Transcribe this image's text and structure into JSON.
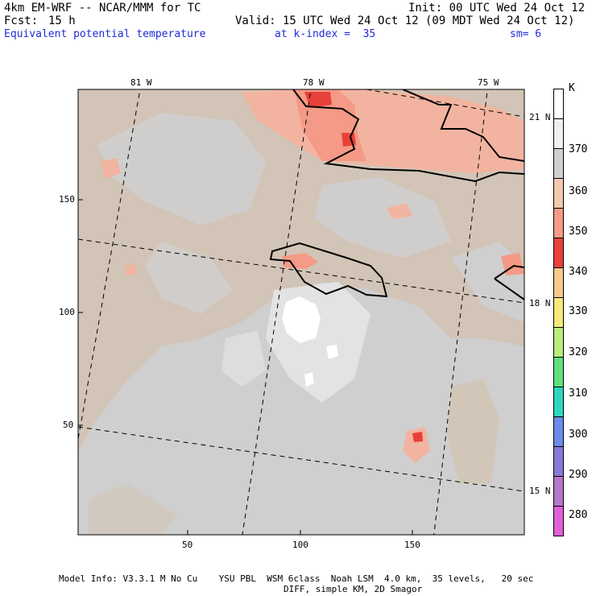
{
  "header": {
    "model": "4km EM-WRF -- NCAR/MMM for TC",
    "init": "Init: 00 UTC Wed 24 Oct 12",
    "fcst_label": "Fcst:",
    "fcst_value": "15 h",
    "valid": "Valid: 15 UTC Wed 24 Oct 12 (09 MDT Wed 24 Oct 12)",
    "field": "Equivalent potential temperature",
    "level": "at k-index =  35",
    "smooth": "sm= 6"
  },
  "map": {
    "lon_labels": [
      "81 W",
      "78 W",
      "75 W"
    ],
    "lat_labels": [
      "21 N",
      "18 N",
      "15 N"
    ],
    "y_ticks": [
      "150",
      "100",
      "50"
    ],
    "x_ticks": [
      "50",
      "100",
      "150"
    ]
  },
  "colorbar": {
    "unit": "K",
    "labels": [
      "370",
      "360",
      "350",
      "340",
      "330",
      "320",
      "310",
      "300",
      "290",
      "280"
    ],
    "colors": [
      "#ffffff",
      "#f0f0f0",
      "#cfcfcf",
      "#f2c9ad",
      "#f49a86",
      "#e8413a",
      "#f4c98a",
      "#f6e97a",
      "#b9ec7a",
      "#5fe07a",
      "#2ed8c0",
      "#6a8ce8",
      "#8a78d8",
      "#b478c8",
      "#e060d8"
    ]
  },
  "footer": {
    "line1": "Model Info: V3.3.1 M No Cu    YSU PBL  WSM 6class  Noah LSM  4.0 km,  35 levels,   20 sec",
    "line2": "DIFF, simple KM, 2D Smagor"
  }
}
